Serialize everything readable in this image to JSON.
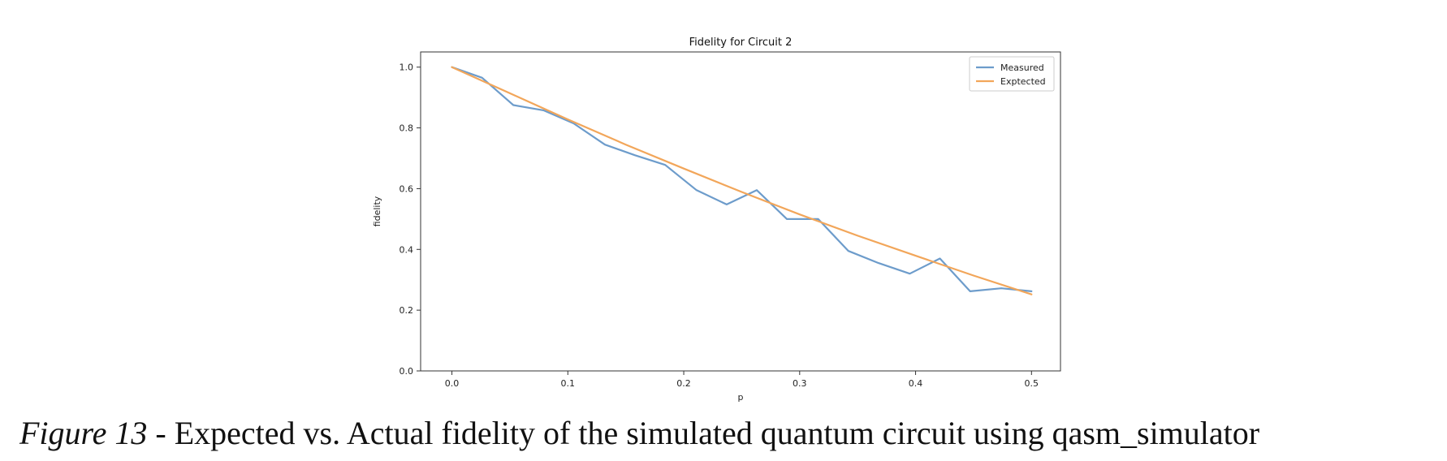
{
  "chart_data": {
    "type": "line",
    "title": "Fidelity for Circuit 2",
    "xlabel": "p",
    "ylabel": "fidelity",
    "xlim": [
      -0.027,
      0.525
    ],
    "ylim": [
      0.0,
      1.05
    ],
    "xticks": [
      "0.0",
      "0.1",
      "0.2",
      "0.3",
      "0.4",
      "0.5"
    ],
    "yticks": [
      "0.0",
      "0.2",
      "0.4",
      "0.6",
      "0.8",
      "1.0"
    ],
    "grid": false,
    "legend_position": "top-right",
    "series": [
      {
        "name": "Measured",
        "color": "#6d9ccb",
        "x": [
          0.0,
          0.026,
          0.053,
          0.079,
          0.105,
          0.132,
          0.158,
          0.184,
          0.211,
          0.237,
          0.263,
          0.289,
          0.316,
          0.342,
          0.368,
          0.395,
          0.421,
          0.447,
          0.474,
          0.5
        ],
        "values": [
          1.0,
          0.965,
          0.875,
          0.858,
          0.815,
          0.745,
          0.71,
          0.678,
          0.595,
          0.548,
          0.595,
          0.5,
          0.5,
          0.395,
          0.355,
          0.32,
          0.37,
          0.262,
          0.272,
          0.262
        ]
      },
      {
        "name": "Exptected",
        "color": "#f2a65a",
        "x": [
          0.0,
          0.05,
          0.1,
          0.15,
          0.2,
          0.25,
          0.3,
          0.35,
          0.4,
          0.45,
          0.5
        ],
        "values": [
          1.0,
          0.914,
          0.828,
          0.745,
          0.666,
          0.589,
          0.515,
          0.445,
          0.379,
          0.314,
          0.252
        ]
      }
    ]
  },
  "caption": {
    "label": "Figure 13",
    "text": " - Expected vs. Actual fidelity of the simulated quantum circuit using qasm_simulator"
  }
}
